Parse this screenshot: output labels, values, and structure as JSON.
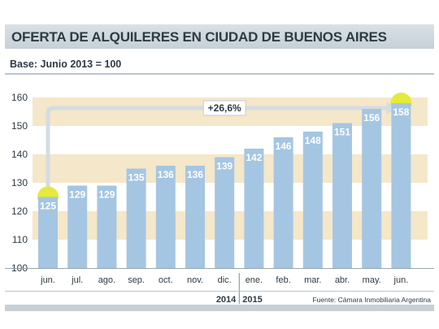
{
  "title": "OFERTA DE ALQUILERES EN CIUDAD DE BUENOS AIRES",
  "subtitle": "Base: Junio 2013 = 100",
  "source": "Fuente: Cámara Inmobiliaria Argentina",
  "colors": {
    "bar": "#a5c6e2",
    "band": "#f5e7c9",
    "highlight": "#e4ea3a",
    "text": "#2d3b44"
  },
  "chart_data": {
    "type": "bar",
    "categories": [
      "jun.",
      "jul.",
      "ago.",
      "sep.",
      "oct.",
      "nov.",
      "dic.",
      "ene.",
      "feb.",
      "mar.",
      "abr.",
      "may.",
      "jun."
    ],
    "values": [
      125,
      129,
      129,
      135,
      136,
      136,
      139,
      142,
      146,
      148,
      151,
      156,
      158
    ],
    "data_labels": [
      "125",
      "129",
      "129",
      "135",
      "136",
      "136",
      "139",
      "142",
      "146",
      "148",
      "151",
      "156",
      "158"
    ],
    "yticks": [
      "100",
      "110",
      "120",
      "130",
      "140",
      "150",
      "160"
    ],
    "ylim": [
      100,
      160
    ],
    "years": [
      "2014",
      "2015"
    ],
    "annotation": "+26,6%",
    "highlighted": [
      0,
      12
    ]
  }
}
